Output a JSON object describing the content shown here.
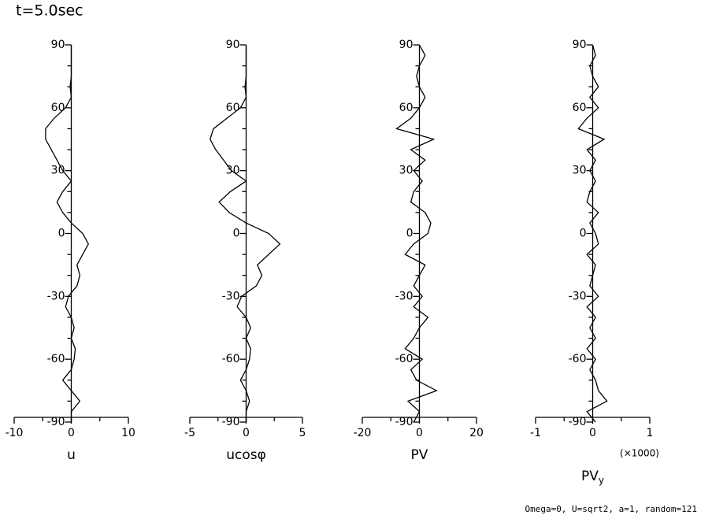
{
  "title": "t=5.0sec",
  "footer": "Omega=0, U=sqrt2, a=1, random=121",
  "chart_data": [
    {
      "type": "line",
      "xlabel": "u",
      "xlim": [
        -10,
        10
      ],
      "xticks": [
        -10,
        0,
        10
      ],
      "xminorticks": [
        -5,
        5
      ],
      "ylim": [
        -90,
        90
      ],
      "yticks": [
        90,
        60,
        30,
        0,
        -30,
        -60,
        -90
      ],
      "yminorticks": [
        80,
        70,
        50,
        40,
        20,
        10,
        -10,
        -20,
        -40,
        -50,
        -70,
        -80
      ],
      "y": [
        90,
        85,
        80,
        75,
        70,
        65,
        60,
        55,
        50,
        45,
        40,
        35,
        30,
        25,
        20,
        15,
        10,
        5,
        0,
        -5,
        -10,
        -15,
        -20,
        -25,
        -30,
        -35,
        -40,
        -45,
        -50,
        -55,
        -60,
        -65,
        -70,
        -75,
        -80,
        -85,
        -90
      ],
      "values": [
        0,
        0,
        0,
        0,
        -0.2,
        0,
        -1,
        -3,
        -4.5,
        -4.5,
        -3.5,
        -2.5,
        -1.5,
        0,
        -1.5,
        -2.5,
        -1.5,
        0,
        2,
        3,
        2,
        1,
        1.5,
        1,
        -0.5,
        -1,
        0,
        0.5,
        0,
        0.7,
        0.5,
        0,
        -1.5,
        0,
        1.5,
        0,
        0
      ]
    },
    {
      "type": "line",
      "xlabel": "ucosφ",
      "xlim": [
        -5,
        5
      ],
      "xticks": [
        -5,
        0,
        5
      ],
      "xminorticks": [
        -2.5,
        2.5
      ],
      "ylim": [
        -90,
        90
      ],
      "yticks": [
        90,
        60,
        30,
        0,
        -30,
        -60,
        -90
      ],
      "yminorticks": [
        80,
        70,
        50,
        40,
        20,
        10,
        -10,
        -20,
        -40,
        -50,
        -70,
        -80
      ],
      "y": [
        90,
        85,
        80,
        75,
        70,
        65,
        60,
        55,
        50,
        45,
        40,
        35,
        30,
        25,
        20,
        15,
        10,
        5,
        0,
        -5,
        -10,
        -15,
        -20,
        -25,
        -30,
        -35,
        -40,
        -45,
        -50,
        -55,
        -60,
        -65,
        -70,
        -75,
        -80,
        -85,
        -90
      ],
      "values": [
        0,
        0,
        0,
        0,
        -0.1,
        0,
        -0.5,
        -1.7,
        -2.9,
        -3.2,
        -2.7,
        -2,
        -1.3,
        0,
        -1.4,
        -2.4,
        -1.5,
        0,
        2,
        3,
        2,
        1,
        1.4,
        0.9,
        -0.4,
        -0.8,
        0,
        0.4,
        0,
        0.4,
        0.3,
        0,
        -0.5,
        0,
        0.3,
        0,
        0
      ]
    },
    {
      "type": "line",
      "xlabel": "PV",
      "xlim": [
        -20,
        20
      ],
      "xticks": [
        -20,
        0,
        20
      ],
      "xminorticks": [
        -10,
        10
      ],
      "ylim": [
        -90,
        90
      ],
      "yticks": [
        90,
        60,
        30,
        0,
        -30,
        -60,
        -90
      ],
      "yminorticks": [
        80,
        70,
        50,
        40,
        20,
        10,
        -10,
        -20,
        -40,
        -50,
        -70,
        -80
      ],
      "y": [
        90,
        85,
        80,
        75,
        70,
        65,
        60,
        55,
        50,
        45,
        40,
        35,
        30,
        25,
        20,
        15,
        10,
        5,
        0,
        -5,
        -10,
        -15,
        -20,
        -25,
        -30,
        -35,
        -40,
        -45,
        -50,
        -55,
        -60,
        -65,
        -70,
        -75,
        -80,
        -85,
        -90
      ],
      "values": [
        0,
        2,
        0,
        -1,
        0,
        2,
        0,
        -3,
        -8,
        5,
        -3,
        2,
        -2,
        1,
        -2,
        -3,
        2,
        4,
        3,
        -2,
        -5,
        2,
        0,
        -2,
        1,
        -2,
        3,
        0,
        -2,
        -5,
        1,
        -3,
        -1,
        6,
        -4,
        0,
        -2
      ]
    },
    {
      "type": "line",
      "xlabel": "PV",
      "xlabel_sub": "y",
      "x_multiplier": "(×1000)",
      "xlim": [
        -1,
        1
      ],
      "xticks": [
        -1,
        0,
        1
      ],
      "xminorticks": [
        -0.5,
        0.5
      ],
      "ylim": [
        -90,
        90
      ],
      "yticks": [
        90,
        60,
        30,
        0,
        -30,
        -60,
        -90
      ],
      "yminorticks": [
        80,
        70,
        50,
        40,
        20,
        10,
        -10,
        -20,
        -40,
        -50,
        -70,
        -80
      ],
      "y": [
        90,
        85,
        80,
        75,
        70,
        65,
        60,
        55,
        50,
        45,
        40,
        35,
        30,
        25,
        20,
        15,
        10,
        5,
        0,
        -5,
        -10,
        -15,
        -20,
        -25,
        -30,
        -35,
        -40,
        -45,
        -50,
        -55,
        -60,
        -65,
        -70,
        -75,
        -80,
        -85,
        -90
      ],
      "values": [
        0,
        0.05,
        -0.05,
        0,
        0.1,
        -0.05,
        0.1,
        -0.1,
        -0.25,
        0.2,
        -0.1,
        0.05,
        -0.05,
        0.05,
        -0.05,
        -0.1,
        0.1,
        -0.05,
        0.05,
        0.1,
        -0.1,
        0.05,
        0,
        -0.05,
        0.1,
        -0.1,
        0.05,
        -0.05,
        0.05,
        -0.1,
        0.05,
        -0.05,
        0.05,
        0.1,
        0.25,
        -0.1,
        0.05
      ]
    }
  ]
}
